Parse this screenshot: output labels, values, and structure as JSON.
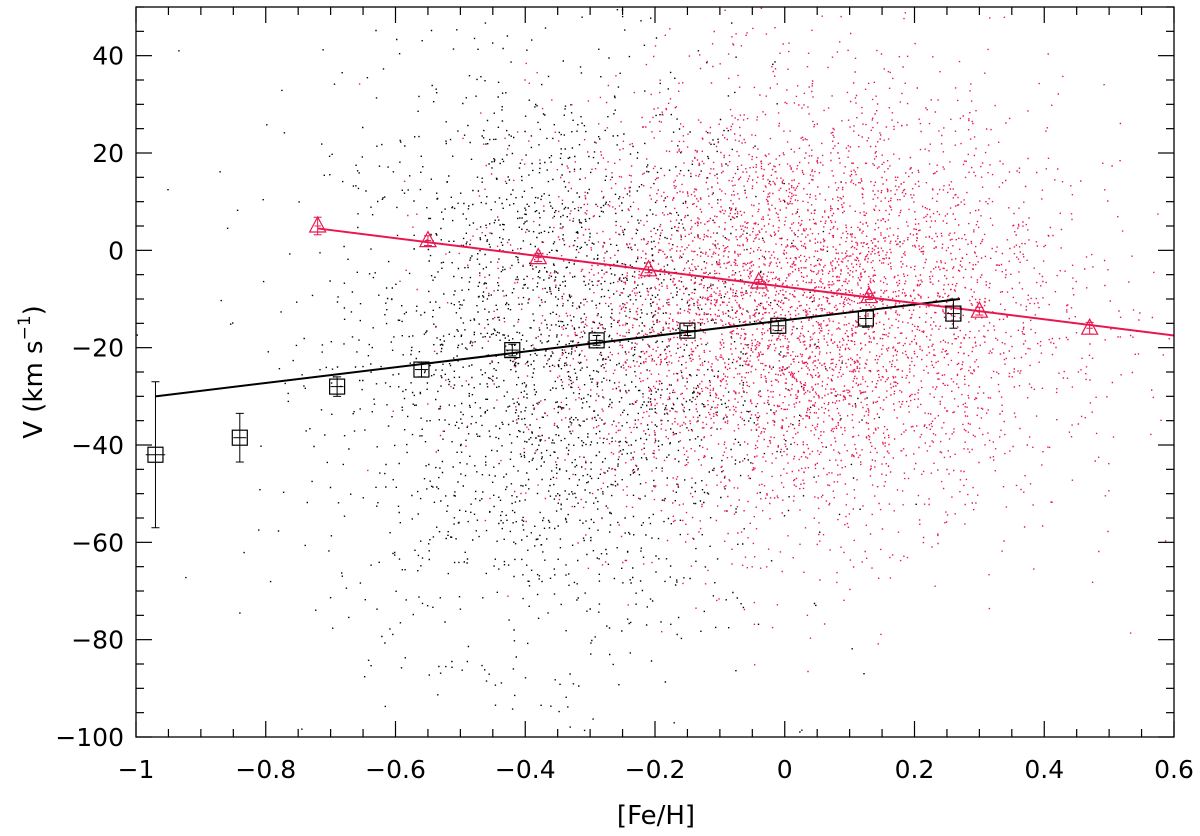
{
  "chart_data": {
    "type": "scatter",
    "xlabel": "[Fe/H]",
    "ylabel": "V (km s",
    "ylabel_sup": "−1",
    "ylabel_close": ")",
    "xlim": [
      -1.0,
      0.6
    ],
    "ylim": [
      -100,
      50
    ],
    "x_ticks": [
      -1.0,
      -0.8,
      -0.6,
      -0.4,
      -0.2,
      0.0,
      0.2,
      0.4,
      0.6
    ],
    "x_tick_labels": [
      "−1",
      "−0.8",
      "−0.6",
      "−0.4",
      "−0.2",
      "0",
      "0.2",
      "0.4",
      "0.6"
    ],
    "y_ticks": [
      -100,
      -80,
      -60,
      -40,
      -20,
      0,
      20,
      40
    ],
    "y_tick_labels": [
      "−100",
      "−80",
      "−60",
      "−40",
      "−20",
      "0",
      "20",
      "40"
    ],
    "grid": false,
    "colors": {
      "black_series": "#000000",
      "red_series": "#e8174f"
    },
    "series": [
      {
        "marker": "square",
        "color": "#000000",
        "cloud": {
          "x_center": -0.36,
          "x_sd": 0.17,
          "y_center": -22,
          "y_sd": 30,
          "count": 2600
        },
        "points": [
          {
            "x": -0.97,
            "y": -42,
            "xerr": 0.015,
            "yerr": 15
          },
          {
            "x": -0.84,
            "y": -38.5,
            "xerr": 0.01,
            "yerr": 5
          },
          {
            "x": -0.69,
            "y": -28,
            "xerr": 0.01,
            "yerr": 2
          },
          {
            "x": -0.56,
            "y": -24.5,
            "xerr": 0.01,
            "yerr": 1.5
          },
          {
            "x": -0.42,
            "y": -20.5,
            "xerr": 0.01,
            "yerr": 1.2
          },
          {
            "x": -0.29,
            "y": -18.5,
            "xerr": 0.01,
            "yerr": 1.0
          },
          {
            "x": -0.15,
            "y": -16.5,
            "xerr": 0.01,
            "yerr": 1.0
          },
          {
            "x": -0.01,
            "y": -15.5,
            "xerr": 0.01,
            "yerr": 1.0
          },
          {
            "x": 0.125,
            "y": -14,
            "xerr": 0.01,
            "yerr": 1.8
          },
          {
            "x": 0.26,
            "y": -13,
            "xerr": 0.01,
            "yerr": 3
          }
        ],
        "fit": {
          "x_start": -0.97,
          "y_start": -30,
          "x_end": 0.27,
          "y_end": -10
        }
      },
      {
        "marker": "triangle",
        "color": "#e8174f",
        "cloud": {
          "x_center": 0.02,
          "x_sd": 0.2,
          "y_center": -12,
          "y_sd": 22,
          "count": 9000
        },
        "points": [
          {
            "x": -0.72,
            "y": 5,
            "xerr": 0.005,
            "yerr": 1.8
          },
          {
            "x": -0.55,
            "y": 2,
            "xerr": 0.005,
            "yerr": 1.0
          },
          {
            "x": -0.38,
            "y": -1.5,
            "xerr": 0.005,
            "yerr": 0.8
          },
          {
            "x": -0.21,
            "y": -4,
            "xerr": 0.005,
            "yerr": 0.6
          },
          {
            "x": -0.04,
            "y": -6.5,
            "xerr": 0.005,
            "yerr": 0.5
          },
          {
            "x": 0.13,
            "y": -9.5,
            "xerr": 0.005,
            "yerr": 0.6
          },
          {
            "x": 0.3,
            "y": -12.5,
            "xerr": 0.005,
            "yerr": 0.8
          },
          {
            "x": 0.47,
            "y": -16,
            "xerr": 0.005,
            "yerr": 1.2
          }
        ],
        "fit": {
          "x_start": -0.72,
          "y_start": 4.5,
          "x_end": 0.6,
          "y_end": -17.5
        }
      }
    ]
  }
}
